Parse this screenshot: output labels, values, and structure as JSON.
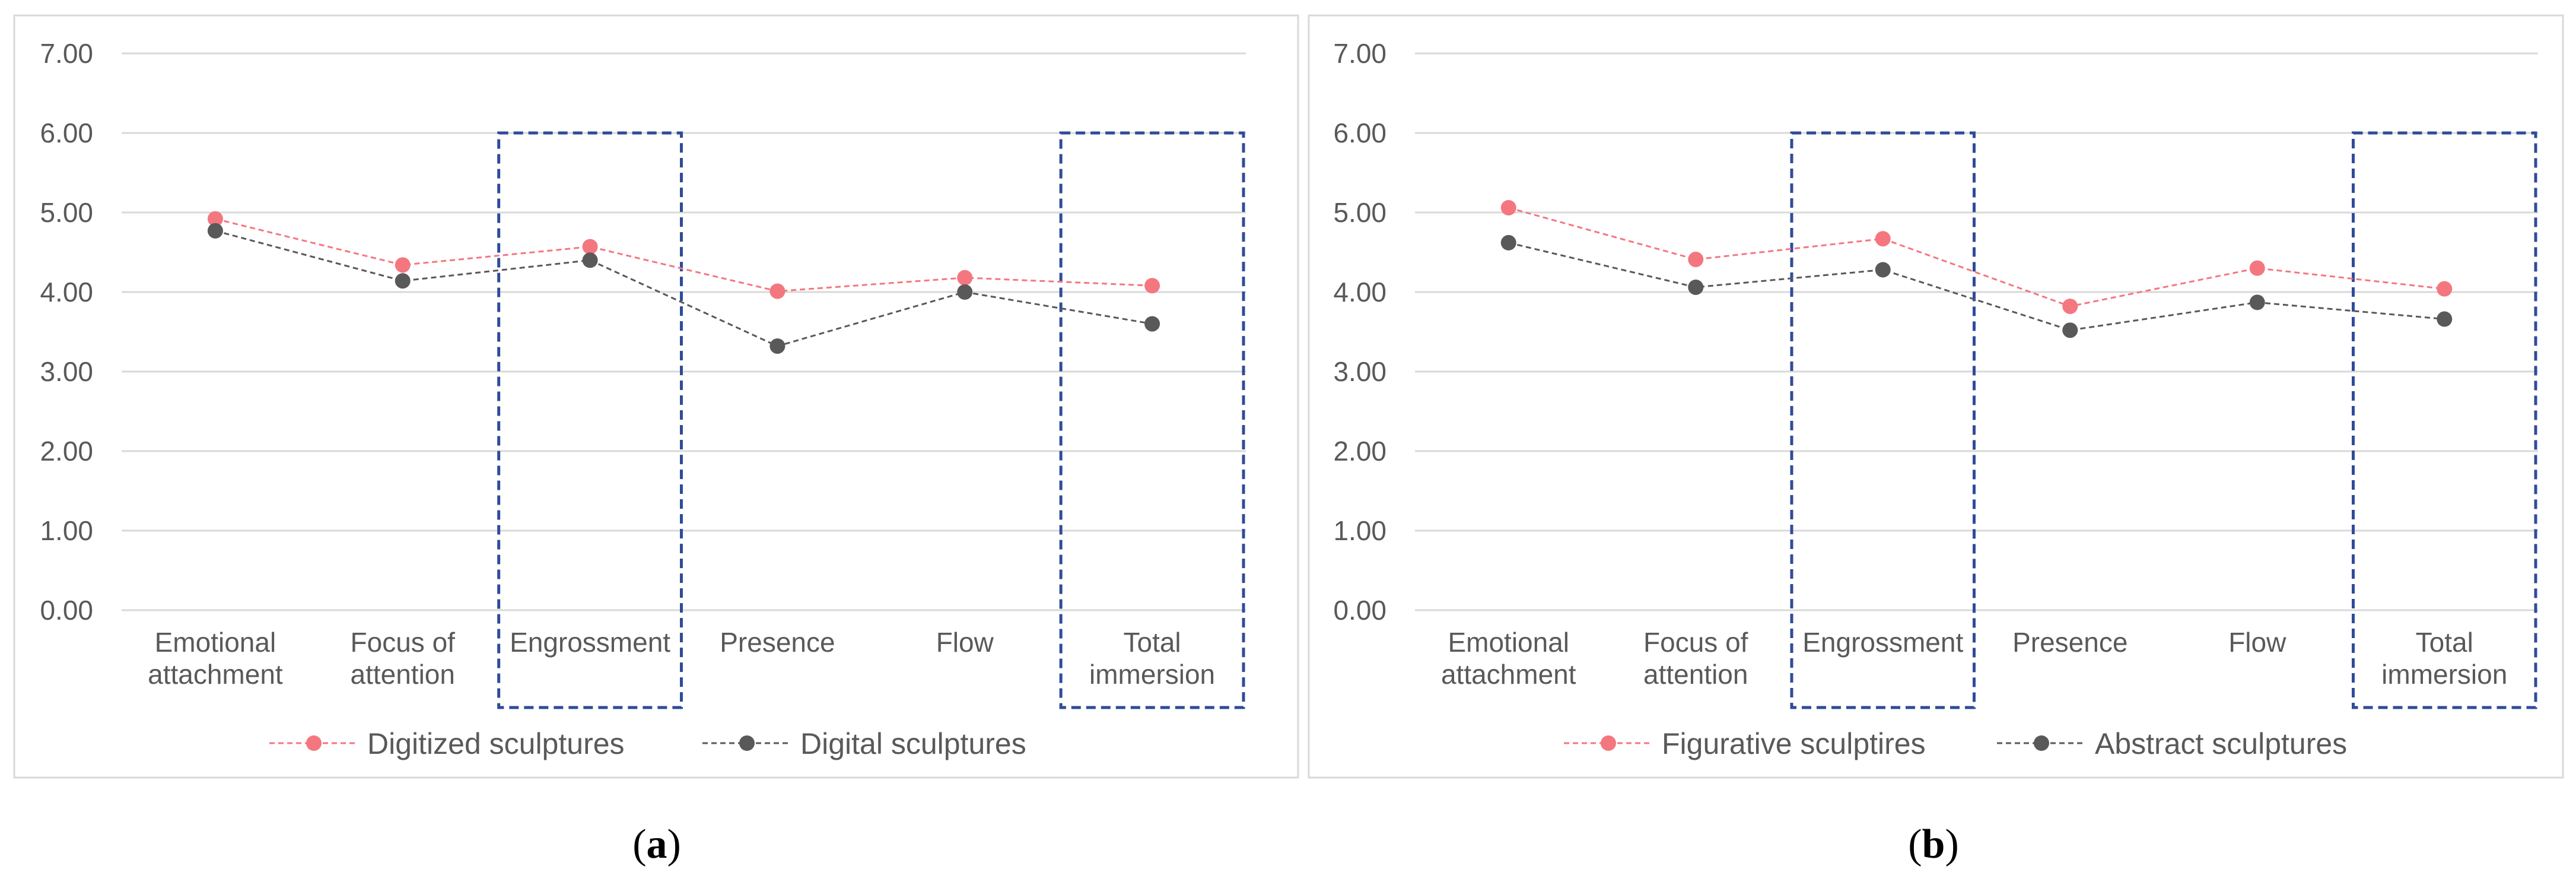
{
  "figure": {
    "captions": [
      "(a)",
      "(b)"
    ]
  },
  "chart_data": [
    {
      "type": "line",
      "panel": "a",
      "categories": [
        [
          "Emotional",
          "attachment"
        ],
        [
          "Focus of",
          "attention"
        ],
        [
          "Engrossment"
        ],
        [
          "Presence"
        ],
        [
          "Flow"
        ],
        [
          "Total",
          "immersion"
        ]
      ],
      "ylim": [
        0,
        7
      ],
      "yticks": [
        "0.00",
        "1.00",
        "2.00",
        "3.00",
        "4.00",
        "5.00",
        "6.00",
        "7.00"
      ],
      "grid": true,
      "highlighted_categories": [
        2,
        5
      ],
      "highlight_range": [
        -1,
        6
      ],
      "legend_position": "bottom",
      "series": [
        {
          "name": "Digitized sculptures",
          "color": "#f4777f",
          "dash": "dashed",
          "values": [
            4.92,
            4.34,
            4.57,
            4.01,
            4.18,
            4.08
          ]
        },
        {
          "name": "Digital sculptures",
          "color": "#595959",
          "dash": "dashed",
          "values": [
            4.77,
            4.14,
            4.4,
            3.32,
            4.0,
            3.6
          ]
        }
      ],
      "highlight_color": "#2f4b9a"
    },
    {
      "type": "line",
      "panel": "b",
      "categories": [
        [
          "Emotional",
          "attachment"
        ],
        [
          "Focus of",
          "attention"
        ],
        [
          "Engrossment"
        ],
        [
          "Presence"
        ],
        [
          "Flow"
        ],
        [
          "Total",
          "immersion"
        ]
      ],
      "ylim": [
        0,
        7
      ],
      "yticks": [
        "0.00",
        "1.00",
        "2.00",
        "3.00",
        "4.00",
        "5.00",
        "6.00",
        "7.00"
      ],
      "grid": true,
      "highlighted_categories": [
        2,
        5
      ],
      "highlight_range": [
        -1,
        6
      ],
      "legend_position": "bottom",
      "series": [
        {
          "name": "Figurative sculptires",
          "color": "#f4777f",
          "dash": "dashed",
          "values": [
            5.06,
            4.41,
            4.67,
            3.82,
            4.3,
            4.04
          ]
        },
        {
          "name": "Abstract sculptures",
          "color": "#595959",
          "dash": "dashed",
          "values": [
            4.62,
            4.06,
            4.28,
            3.52,
            3.87,
            3.66
          ]
        }
      ],
      "highlight_color": "#2f4b9a"
    }
  ]
}
